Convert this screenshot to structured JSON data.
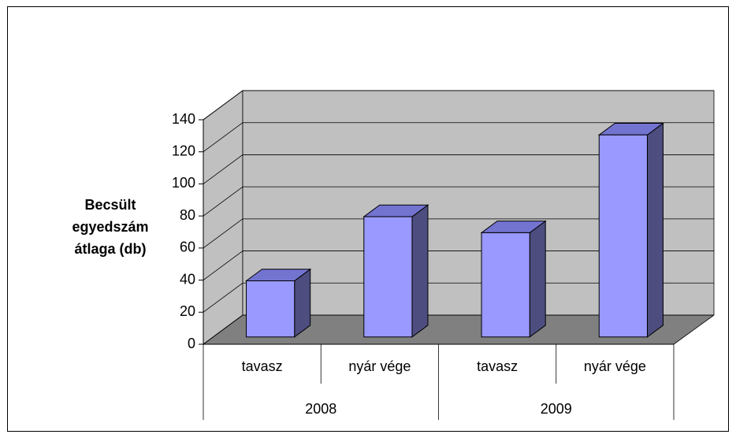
{
  "chart_data": {
    "type": "bar3d",
    "y_label": "Becsült egyedszám átlaga (db)",
    "categories": [
      "tavasz",
      "nyár vége",
      "tavasz",
      "nyár vége"
    ],
    "category_groups": [
      "2008",
      "2009"
    ],
    "values": [
      35,
      75,
      65,
      126
    ],
    "color": "#9999ff",
    "ylim": [
      0,
      140
    ],
    "yticks": [
      0,
      20,
      40,
      60,
      80,
      100,
      120,
      140
    ],
    "grid": true
  }
}
